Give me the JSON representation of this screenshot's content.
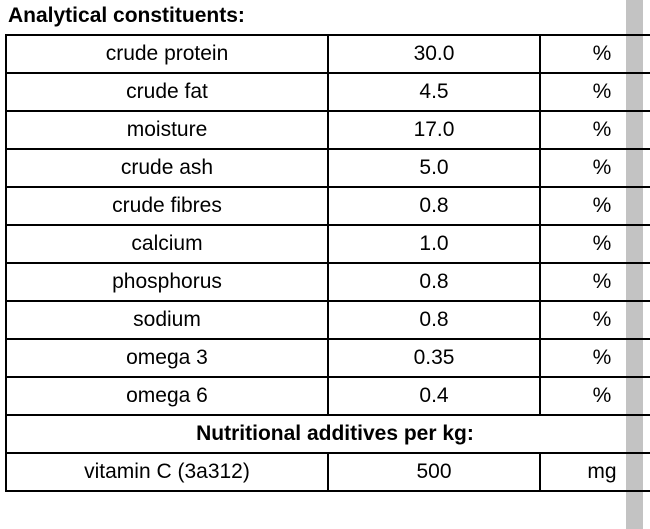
{
  "page": {
    "title": "Analytical constituents:",
    "section_header": "Nutritional additives per kg:"
  },
  "table": {
    "analytical": [
      {
        "name": "crude protein",
        "value": "30.0",
        "unit": "%"
      },
      {
        "name": "crude fat",
        "value": "4.5",
        "unit": "%"
      },
      {
        "name": "moisture",
        "value": "17.0",
        "unit": "%"
      },
      {
        "name": "crude ash",
        "value": "5.0",
        "unit": "%"
      },
      {
        "name": "crude fibres",
        "value": "0.8",
        "unit": "%"
      },
      {
        "name": "calcium",
        "value": "1.0",
        "unit": "%"
      },
      {
        "name": "phosphorus",
        "value": "0.8",
        "unit": "%"
      },
      {
        "name": "sodium",
        "value": "0.8",
        "unit": "%"
      },
      {
        "name": "omega 3",
        "value": "0.35",
        "unit": "%"
      },
      {
        "name": "omega 6",
        "value": "0.4",
        "unit": "%"
      }
    ],
    "additives": [
      {
        "name": "vitamin C (3a312)",
        "value": "500",
        "unit": "mg"
      }
    ]
  }
}
